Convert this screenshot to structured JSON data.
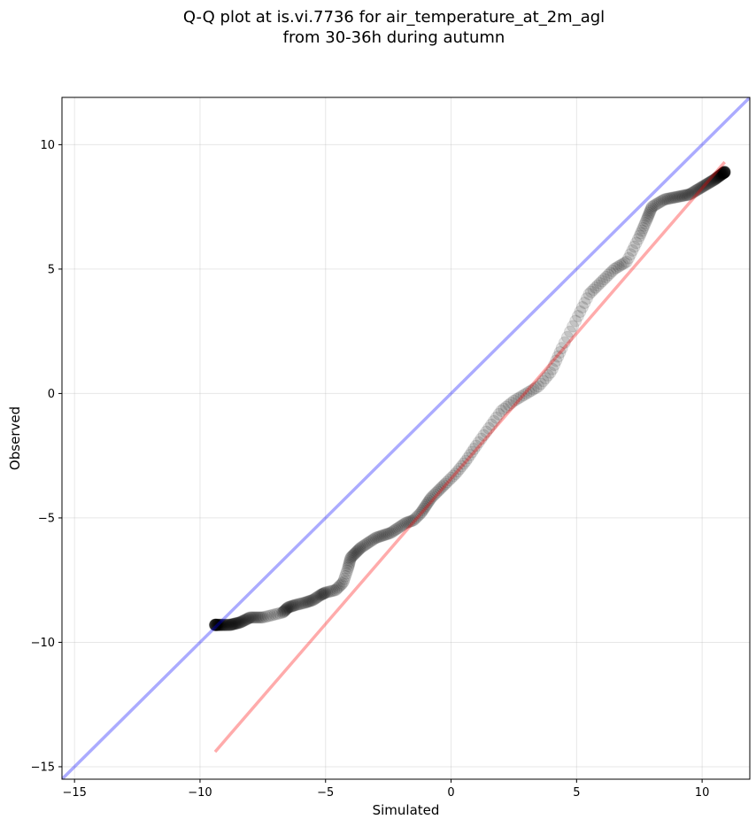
{
  "title": {
    "line1": "Q-Q plot at is.vi.7736 for air_temperature_at_2m_agl",
    "line2": "from 30-36h during autumn"
  },
  "chart_data": {
    "type": "scatter",
    "title": "Q-Q plot at is.vi.7736 for air_temperature_at_2m_agl\nfrom 30-36h during autumn",
    "xlabel": "Simulated",
    "ylabel": "Observed",
    "xlim": [
      -15.5,
      11.9
    ],
    "ylim": [
      -15.5,
      11.9
    ],
    "xticks": [
      -15,
      -10,
      -5,
      0,
      5,
      10
    ],
    "yticks": [
      -15,
      -10,
      -5,
      0,
      5,
      10
    ],
    "xtick_labels": [
      "−15",
      "−10",
      "−5",
      "0",
      "5",
      "10"
    ],
    "ytick_labels": [
      "−15",
      "−10",
      "−5",
      "0",
      "5",
      "10"
    ],
    "grid": true,
    "quantile_anchors": {
      "x": [
        -9.4,
        -8.8,
        -8.4,
        -8.0,
        -7.5,
        -6.7,
        -6.5,
        -6.2,
        -5.8,
        -5.5,
        -5.2,
        -5.0,
        -4.6,
        -4.3,
        -4.1,
        -4.0,
        -3.8,
        -3.6,
        -3.3,
        -3.0,
        -2.7,
        -2.4,
        -2.1,
        -1.8,
        -1.5,
        -1.2,
        -1.0,
        -0.8,
        -0.5,
        -0.2,
        0.2,
        0.6,
        1.0,
        1.5,
        2.0,
        2.5,
        3.0,
        3.5,
        4.0,
        4.4,
        5.0,
        5.5,
        6.0,
        6.5,
        7.0,
        7.5,
        7.8,
        8.0,
        8.5,
        9.0,
        9.5,
        10.0,
        10.5,
        10.9
      ],
      "y": [
        -9.3,
        -9.3,
        -9.2,
        -9.0,
        -9.0,
        -8.8,
        -8.6,
        -8.5,
        -8.4,
        -8.3,
        -8.1,
        -8.0,
        -7.9,
        -7.6,
        -7.0,
        -6.6,
        -6.4,
        -6.2,
        -6.0,
        -5.8,
        -5.7,
        -5.6,
        -5.4,
        -5.2,
        -5.1,
        -4.8,
        -4.5,
        -4.2,
        -3.9,
        -3.6,
        -3.2,
        -2.7,
        -2.1,
        -1.4,
        -0.7,
        -0.3,
        0.0,
        0.3,
        0.9,
        1.8,
        3.0,
        4.0,
        4.5,
        5.0,
        5.3,
        6.3,
        7.0,
        7.5,
        7.8,
        7.9,
        8.0,
        8.3,
        8.6,
        8.9
      ]
    },
    "point_count": 400,
    "point_color": "#000000",
    "point_opacity": 0.12,
    "reference_lines": [
      {
        "name": "1:1",
        "color": "#0000ff",
        "opacity": 0.33,
        "x": [
          -15.5,
          11.9
        ],
        "y": [
          -15.5,
          11.9
        ]
      },
      {
        "name": "fit",
        "color": "#ff0000",
        "opacity": 0.33,
        "x": [
          -9.4,
          10.9
        ],
        "y": [
          -14.4,
          9.3
        ]
      }
    ]
  }
}
